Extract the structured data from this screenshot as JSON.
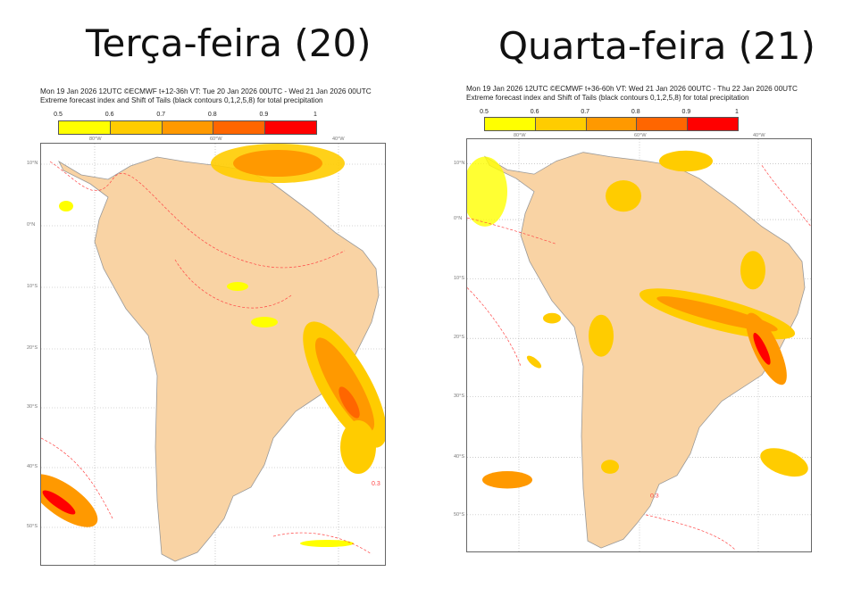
{
  "panels": [
    {
      "title": "Terça-feira (20)",
      "header_line1": "Mon 19 Jan 2026 12UTC ©ECMWF t+12-36h  VT: Tue 20 Jan 2026 00UTC - Wed 21 Jan 2026 00UTC",
      "header_line2": "Extreme forecast index and Shift of Tails (black contours 0,1,2,5,8) for total precipitation"
    },
    {
      "title": "Quarta-feira (21)",
      "header_line1": "Mon 19 Jan 2026 12UTC ©ECMWF t+36-60h  VT: Wed 21 Jan 2026 00UTC - Thu 22 Jan 2026 00UTC",
      "header_line2": "Extreme forecast index and Shift of Tails (black contours 0,1,2,5,8) for total precipitation"
    }
  ],
  "colorbar": {
    "ticks": [
      "0.5",
      "0.6",
      "0.7",
      "0.8",
      "0.9",
      "1"
    ],
    "colors": [
      "#ffff00",
      "#ffcc00",
      "#ff9900",
      "#ff6600",
      "#ff0000"
    ]
  },
  "axes": {
    "lon": [
      "80°W",
      "60°W",
      "40°W"
    ],
    "lat": [
      "10°N",
      "0°N",
      "10°S",
      "20°S",
      "30°S",
      "40°S",
      "50°S"
    ]
  },
  "contour_label": "0.3",
  "land_color": "#f9d3a4"
}
